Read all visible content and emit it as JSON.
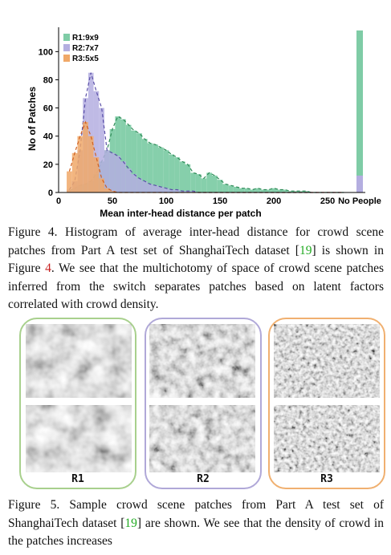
{
  "figure4": {
    "chart_data": {
      "type": "bar",
      "xlabel": "Mean inter-head distance per patch",
      "ylabel": "No of Patches",
      "xticks": [
        "0",
        "50",
        "100",
        "150",
        "200",
        "250",
        "No People"
      ],
      "yticks": [
        "0",
        "20",
        "40",
        "60",
        "80",
        "100"
      ],
      "ylim": [
        0,
        115
      ],
      "xlim": [
        0,
        285
      ],
      "legend_position": "top-left",
      "series": [
        {
          "name": "R1:9x9",
          "color": "#7fcca6",
          "x": [
            10,
            15,
            20,
            25,
            30,
            35,
            40,
            45,
            50,
            55,
            60,
            65,
            70,
            75,
            80,
            85,
            90,
            95,
            100,
            105,
            110,
            115,
            120,
            125,
            130,
            135,
            140,
            145,
            150,
            155,
            160,
            165,
            170,
            175,
            180,
            185,
            190,
            195,
            200,
            205,
            210,
            215,
            220,
            225,
            230,
            235,
            240,
            245,
            250,
            255,
            260,
            265
          ],
          "values": [
            1,
            3,
            5,
            6,
            8,
            13,
            22,
            30,
            45,
            54,
            52,
            48,
            44,
            42,
            38,
            35,
            34,
            32,
            30,
            27,
            25,
            22,
            20,
            14,
            13,
            10,
            14,
            12,
            9,
            6,
            5,
            4,
            3,
            3,
            2,
            3,
            2,
            2,
            3,
            2,
            2,
            1,
            1,
            1,
            1,
            0,
            0,
            0,
            0,
            0,
            0,
            0
          ],
          "no_people_value": 115
        },
        {
          "name": "R2:7x7",
          "color": "#b4aee0",
          "x": [
            10,
            15,
            20,
            25,
            30,
            35,
            40,
            45,
            50,
            55,
            60,
            65,
            70,
            75,
            80,
            85,
            90,
            95,
            100,
            105,
            110,
            115,
            120,
            125,
            130,
            135,
            140,
            145,
            150,
            155,
            160,
            165,
            170,
            175,
            180,
            185,
            190,
            195,
            200,
            205,
            210,
            215,
            220,
            225,
            230,
            235,
            240,
            245,
            250,
            255,
            260,
            265
          ],
          "values": [
            2,
            8,
            30,
            67,
            85,
            72,
            60,
            30,
            28,
            26,
            22,
            17,
            13,
            10,
            8,
            6,
            5,
            4,
            3,
            2,
            2,
            1,
            1,
            1,
            0,
            0,
            0,
            0,
            0,
            0,
            0,
            0,
            0,
            0,
            0,
            0,
            0,
            0,
            0,
            0,
            0,
            0,
            0,
            0,
            0,
            0,
            0,
            0,
            0,
            0,
            0,
            0
          ],
          "no_people_value": 12
        },
        {
          "name": "R3:5x5",
          "color": "#f0a868",
          "x": [
            10,
            15,
            20,
            25,
            30,
            35,
            40,
            45,
            50,
            55,
            60,
            65,
            70,
            75,
            80,
            85,
            90,
            95,
            100,
            105,
            110,
            115,
            120,
            125,
            130,
            135,
            140,
            145,
            150,
            155,
            160,
            165,
            170,
            175,
            180,
            185,
            190,
            195,
            200,
            205,
            210,
            215,
            220,
            225,
            230,
            235,
            240,
            245,
            250,
            255,
            260,
            265
          ],
          "values": [
            15,
            28,
            40,
            50,
            40,
            25,
            10,
            3,
            1,
            0,
            0,
            0,
            0,
            0,
            0,
            0,
            0,
            0,
            0,
            0,
            0,
            0,
            0,
            0,
            0,
            0,
            0,
            0,
            0,
            0,
            0,
            0,
            0,
            0,
            0,
            0,
            0,
            0,
            0,
            0,
            0,
            0,
            0,
            0,
            0,
            0,
            0,
            0,
            0,
            0,
            0,
            0
          ],
          "no_people_value": 0
        }
      ]
    },
    "caption_prefix": "Figure 4.",
    "caption_text_a": "Histogram of average inter-head distance for crowd scene patches from Part A test set of ShanghaiTech dataset [",
    "caption_ref_a": "19",
    "caption_text_b": "] is shown in Figure ",
    "caption_ref_b": "4",
    "caption_text_c": ". We see that the multichotomy of space of crowd scene patches inferred from the switch separates patches based on latent factors correlated with crowd density."
  },
  "figure5": {
    "groups": [
      {
        "label": "R1",
        "border": "#a8d08d"
      },
      {
        "label": "R2",
        "border": "#b0a8d8"
      },
      {
        "label": "R3",
        "border": "#f0b070"
      }
    ],
    "caption_prefix": "Figure 5.",
    "caption_text_a": "Sample crowd scene patches from Part A test set of ShanghaiTech dataset [",
    "caption_ref_a": "19",
    "caption_text_b": "] are shown. We see that the density of crowd in the patches increases"
  }
}
